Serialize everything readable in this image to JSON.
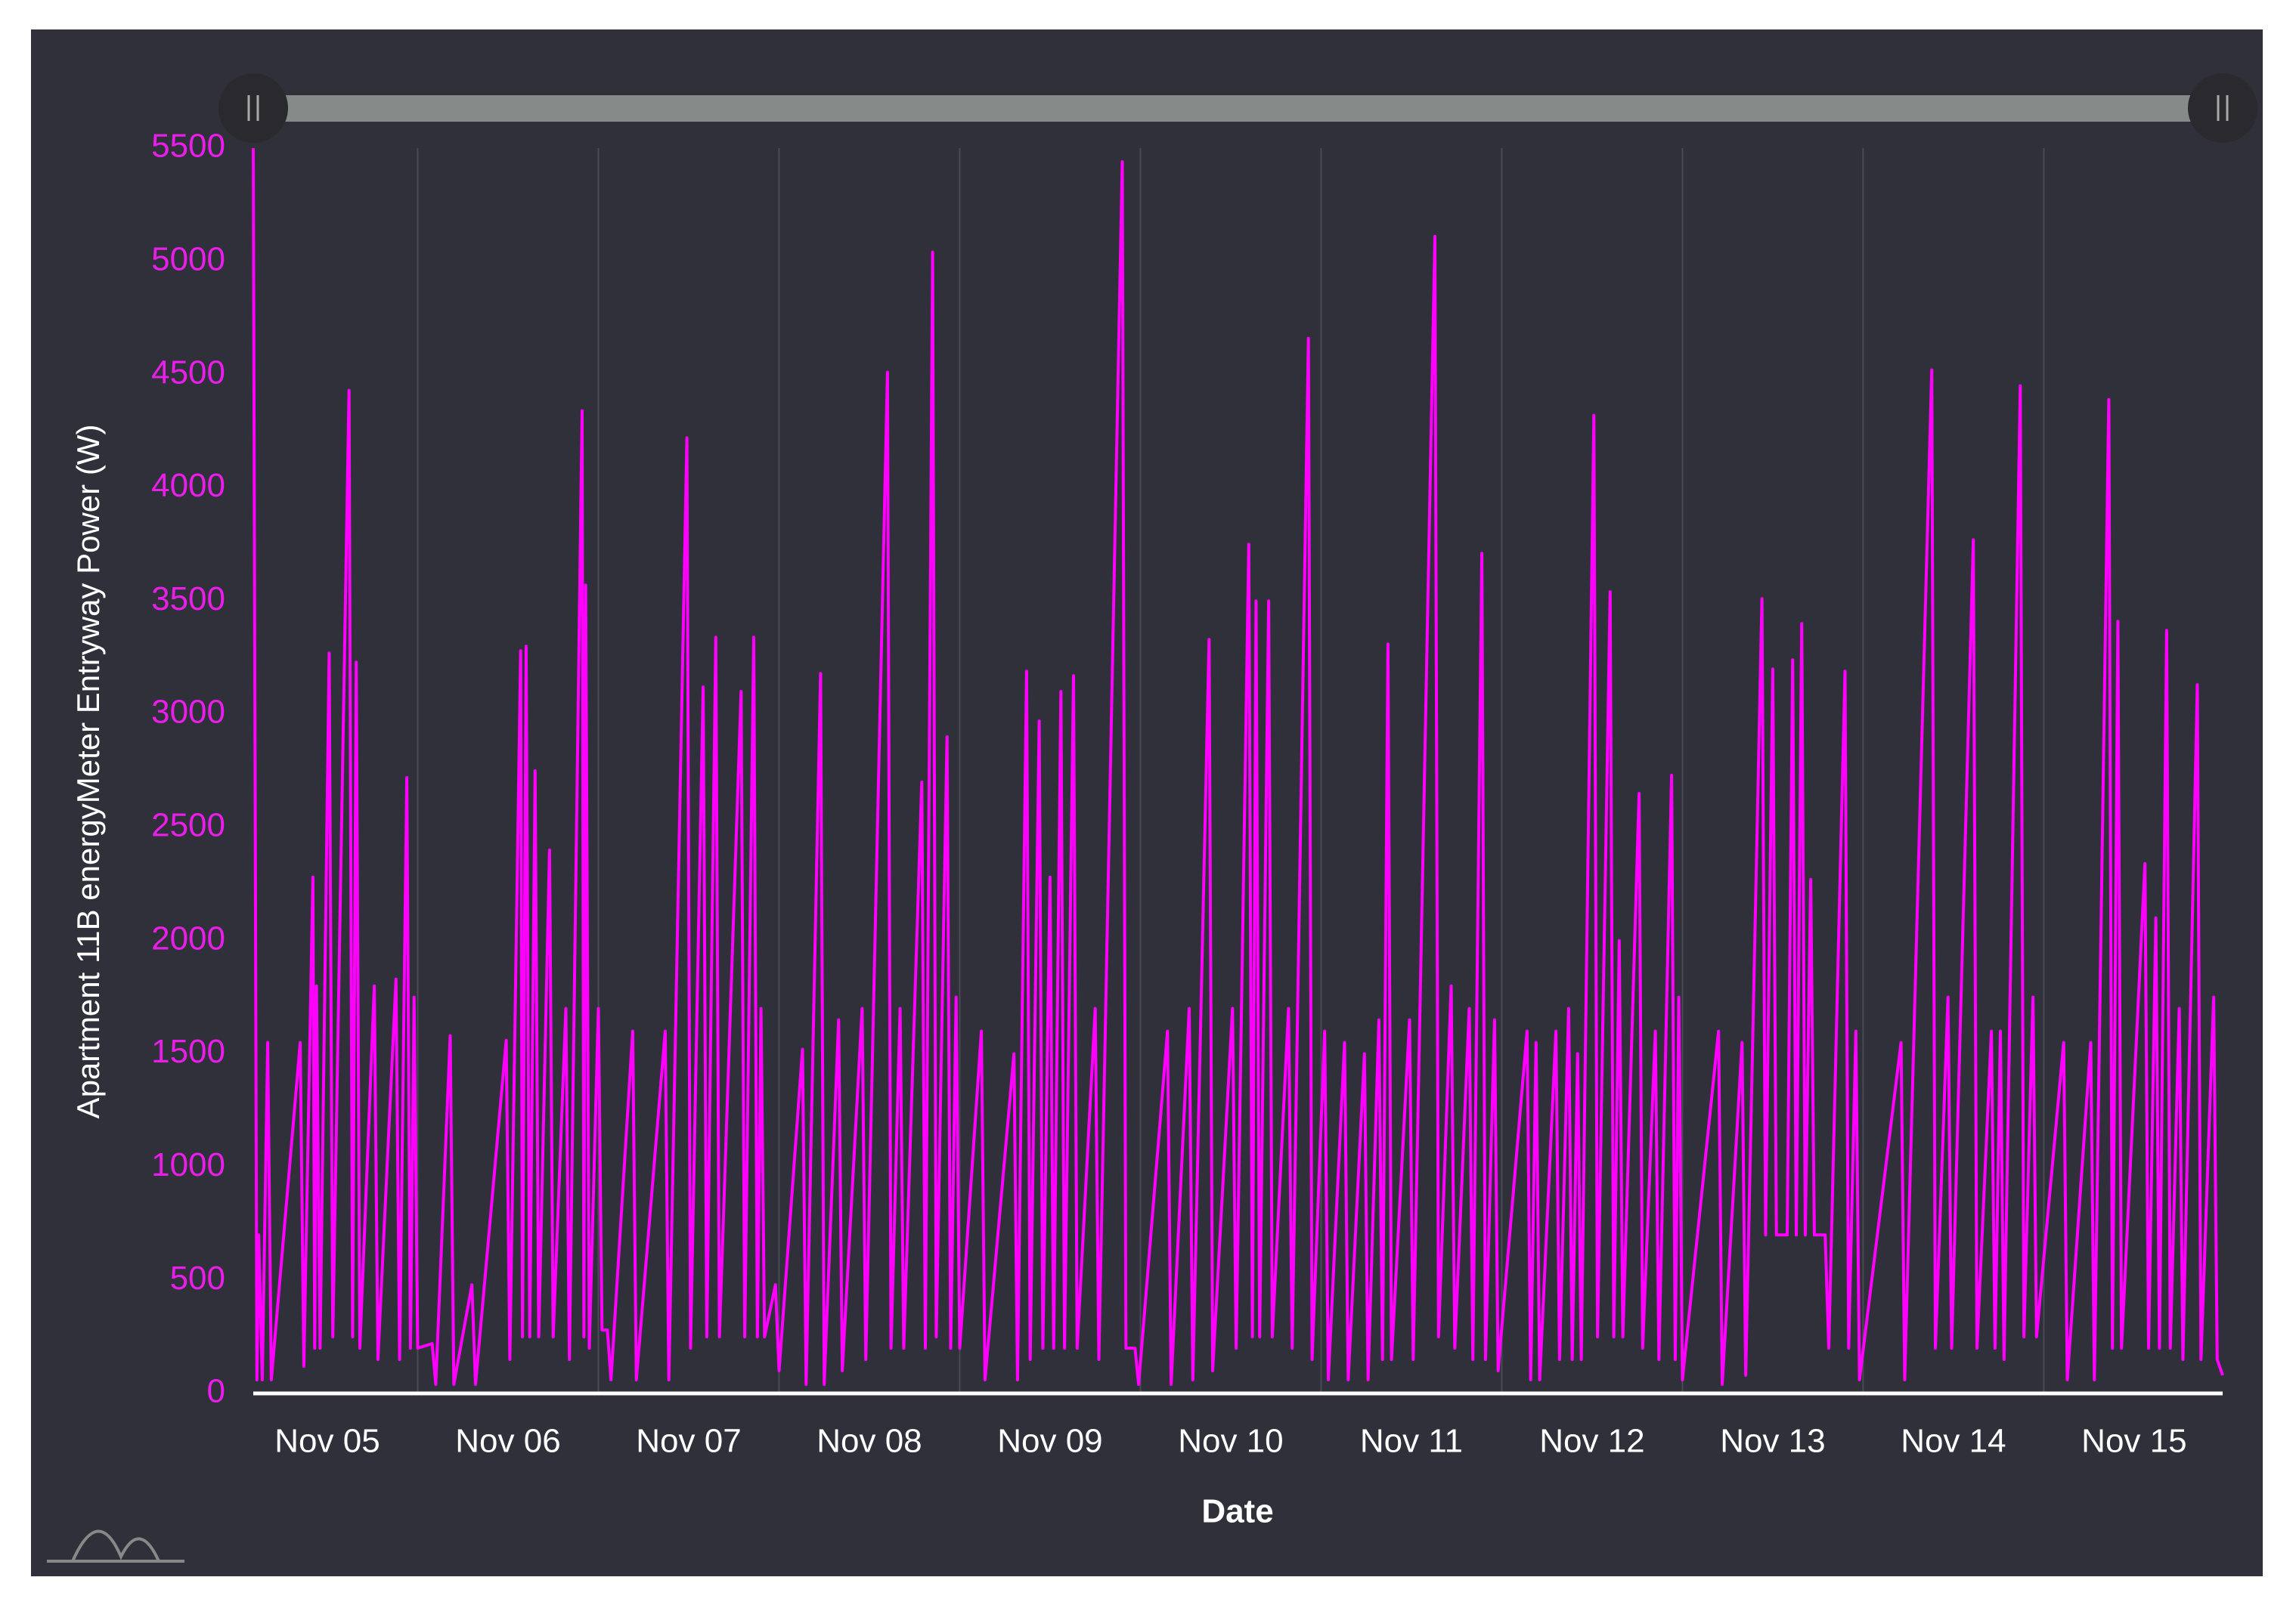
{
  "chart_data": {
    "type": "line",
    "y_label": "Apartment 11B energyMeter Entryway Power (W)",
    "x_label": "Date",
    "color": "#ff00ff",
    "grid": true,
    "xlim": [
      5.09,
      15.99
    ],
    "ylim": [
      0,
      5500
    ],
    "xticks": [
      {
        "value": 5,
        "label": "Nov 05"
      },
      {
        "value": 6,
        "label": "Nov 06"
      },
      {
        "value": 7,
        "label": "Nov 07"
      },
      {
        "value": 8,
        "label": "Nov 08"
      },
      {
        "value": 9,
        "label": "Nov 09"
      },
      {
        "value": 10,
        "label": "Nov 10"
      },
      {
        "value": 11,
        "label": "Nov 11"
      },
      {
        "value": 12,
        "label": "Nov 12"
      },
      {
        "value": 13,
        "label": "Nov 13"
      },
      {
        "value": 14,
        "label": "Nov 14"
      },
      {
        "value": 15,
        "label": "Nov 15"
      }
    ],
    "yticks": [
      0,
      500,
      1000,
      1500,
      2000,
      2500,
      3000,
      3500,
      4000,
      4500,
      5000,
      5500
    ],
    "x": [
      5.09,
      5.11,
      5.12,
      5.14,
      5.17,
      5.19,
      5.35,
      5.37,
      5.42,
      5.43,
      5.44,
      5.46,
      5.51,
      5.53,
      5.62,
      5.64,
      5.66,
      5.68,
      5.76,
      5.78,
      5.88,
      5.9,
      5.94,
      5.96,
      5.98,
      6.0,
      6.08,
      6.1,
      6.18,
      6.2,
      6.3,
      6.32,
      6.49,
      6.51,
      6.57,
      6.58,
      6.6,
      6.62,
      6.65,
      6.67,
      6.73,
      6.75,
      6.82,
      6.84,
      6.91,
      6.92,
      6.93,
      6.95,
      7.0,
      7.02,
      7.05,
      7.07,
      7.19,
      7.21,
      7.37,
      7.39,
      7.49,
      7.51,
      7.58,
      7.6,
      7.65,
      7.67,
      7.79,
      7.81,
      7.86,
      7.88,
      7.9,
      7.92,
      7.98,
      8.0,
      8.13,
      8.15,
      8.23,
      8.25,
      8.33,
      8.35,
      8.46,
      8.48,
      8.6,
      8.62,
      8.67,
      8.69,
      8.79,
      8.81,
      8.85,
      8.87,
      8.93,
      8.95,
      8.98,
      9.0,
      9.12,
      9.14,
      9.3,
      9.32,
      9.37,
      9.39,
      9.44,
      9.46,
      9.5,
      9.52,
      9.56,
      9.58,
      9.63,
      9.65,
      9.75,
      9.77,
      9.9,
      9.92,
      9.97,
      9.99,
      10.15,
      10.17,
      10.27,
      10.29,
      10.38,
      10.4,
      10.51,
      10.53,
      10.6,
      10.62,
      10.64,
      10.66,
      10.71,
      10.73,
      10.82,
      10.84,
      10.93,
      10.95,
      11.02,
      11.04,
      11.13,
      11.15,
      11.24,
      11.26,
      11.32,
      11.34,
      11.37,
      11.39,
      11.49,
      11.51,
      11.63,
      11.65,
      11.72,
      11.74,
      11.82,
      11.84,
      11.89,
      11.91,
      11.96,
      11.98,
      12.14,
      12.16,
      12.19,
      12.21,
      12.3,
      12.32,
      12.37,
      12.39,
      12.42,
      12.44,
      12.51,
      12.53,
      12.6,
      12.62,
      12.65,
      12.67,
      12.76,
      12.78,
      12.85,
      12.87,
      12.94,
      12.96,
      12.98,
      13.0,
      13.2,
      13.22,
      13.33,
      13.35,
      13.44,
      13.46,
      13.5,
      13.52,
      13.56,
      13.58,
      13.61,
      13.63,
      13.66,
      13.68,
      13.71,
      13.73,
      13.79,
      13.81,
      13.9,
      13.92,
      13.96,
      13.98,
      14.21,
      14.23,
      14.38,
      14.4,
      14.47,
      14.49,
      14.61,
      14.63,
      14.71,
      14.73,
      14.76,
      14.78,
      14.87,
      14.89,
      14.94,
      14.96,
      15.11,
      15.13,
      15.26,
      15.28,
      15.36,
      15.38,
      15.41,
      15.43,
      15.56,
      15.58,
      15.62,
      15.64,
      15.68,
      15.7,
      15.75,
      15.77,
      15.85,
      15.87,
      15.94,
      15.96,
      15.99
    ],
    "values": [
      5500,
      60,
      700,
      60,
      1550,
      60,
      1550,
      120,
      2280,
      200,
      1800,
      200,
      3270,
      250,
      4430,
      250,
      3230,
      200,
      1800,
      150,
      1830,
      150,
      2720,
      200,
      1750,
      200,
      220,
      40,
      1580,
      40,
      480,
      40,
      1560,
      150,
      3280,
      250,
      3300,
      250,
      2750,
      250,
      2400,
      250,
      1700,
      150,
      4340,
      250,
      3570,
      200,
      1700,
      280,
      280,
      60,
      1600,
      60,
      1600,
      60,
      4220,
      200,
      3120,
      250,
      3340,
      250,
      3100,
      250,
      3340,
      250,
      1700,
      250,
      480,
      100,
      1520,
      40,
      3180,
      40,
      1650,
      100,
      1700,
      150,
      4510,
      200,
      1700,
      200,
      2700,
      200,
      5040,
      250,
      2900,
      200,
      1750,
      200,
      1600,
      60,
      1500,
      60,
      3190,
      150,
      2970,
      200,
      2280,
      200,
      3100,
      200,
      3170,
      200,
      1700,
      150,
      5440,
      200,
      200,
      40,
      1600,
      40,
      1700,
      60,
      3330,
      100,
      1700,
      200,
      3750,
      250,
      3500,
      250,
      3500,
      250,
      1700,
      200,
      4660,
      150,
      1600,
      60,
      1550,
      60,
      1500,
      60,
      1650,
      150,
      3310,
      150,
      1650,
      150,
      5110,
      250,
      1800,
      200,
      1700,
      150,
      3710,
      150,
      1650,
      100,
      1600,
      60,
      1550,
      60,
      1600,
      150,
      1700,
      150,
      1500,
      150,
      4320,
      250,
      3540,
      250,
      2000,
      250,
      2650,
      200,
      1600,
      150,
      2730,
      150,
      1750,
      60,
      1600,
      40,
      1550,
      80,
      3510,
      700,
      3200,
      700,
      700,
      700,
      3240,
      700,
      3400,
      700,
      2270,
      700,
      700,
      200,
      3190,
      200,
      1600,
      60,
      1550,
      60,
      4520,
      200,
      1750,
      200,
      3770,
      200,
      1600,
      200,
      1600,
      150,
      4450,
      250,
      1750,
      250,
      1550,
      60,
      1550,
      60,
      4390,
      200,
      3410,
      200,
      2340,
      200,
      2100,
      200,
      3370,
      200,
      1700,
      150,
      3130,
      150,
      1750,
      150,
      80
    ]
  }
}
